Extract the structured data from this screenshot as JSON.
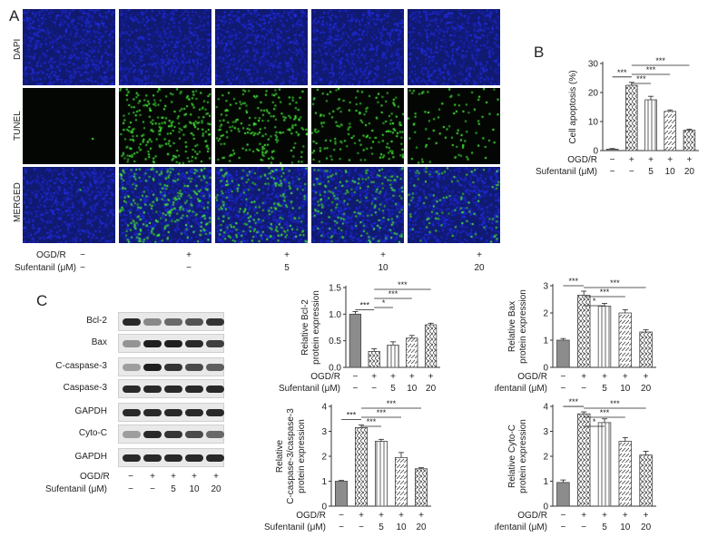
{
  "panelA": {
    "letter": "A",
    "rows": [
      "DAPI",
      "TUNEL",
      "MERGED"
    ],
    "conditions": {
      "ogd_label": "OGD/R",
      "suf_label": "Sufentanil (μM)",
      "ogd": [
        "−",
        "+",
        "+",
        "+",
        "+"
      ],
      "suf": [
        "−",
        "−",
        "5",
        "10",
        "20"
      ]
    }
  },
  "panelB": {
    "letter": "B"
  },
  "panelC": {
    "letter": "C",
    "blots": [
      "Bcl-2",
      "Bax",
      "C-caspase-3",
      "Caspase-3",
      "GAPDH",
      "Cyto-C",
      "GAPDH"
    ],
    "ogd_label": "OGD/R",
    "suf_label": "Sufentanil (μM)",
    "ogd": [
      "−",
      "+",
      "+",
      "+",
      "+"
    ],
    "suf": [
      "−",
      "−",
      "5",
      "10",
      "20"
    ]
  },
  "colors": {
    "dapi": "#1a2a9e",
    "tunel": "#3fd13a",
    "bar_solid": "#8c8c8c"
  },
  "chart_data": [
    {
      "id": "apoptosis",
      "type": "bar",
      "ylabel": "Cell apoptosis (%)",
      "ylim": [
        0,
        30
      ],
      "yticks": [
        0,
        10,
        20,
        30
      ],
      "categories": [
        "1",
        "2",
        "3",
        "4",
        "5"
      ],
      "values": [
        0.5,
        22.5,
        17.5,
        13.5,
        7.0
      ],
      "errors": [
        0.2,
        1.0,
        1.2,
        0.5,
        0.4
      ],
      "ogd_label": "OGD/R",
      "suf_label": "Sufentanil (μM)",
      "ogd": [
        "−",
        "+",
        "+",
        "+",
        "+"
      ],
      "suf": [
        "−",
        "−",
        "5",
        "10",
        "20"
      ],
      "significance": [
        {
          "from": 0,
          "to": 1,
          "label": "***"
        },
        {
          "from": 1,
          "to": 2,
          "label": "***"
        },
        {
          "from": 1,
          "to": 3,
          "label": "***"
        },
        {
          "from": 1,
          "to": 4,
          "label": "***"
        }
      ]
    },
    {
      "id": "bcl2",
      "type": "bar",
      "ylabel": [
        "Relative Bcl-2",
        "protein expression"
      ],
      "ylim": [
        0,
        1.5
      ],
      "yticks": [
        0.0,
        0.5,
        1.0,
        1.5
      ],
      "categories": [
        "1",
        "2",
        "3",
        "4",
        "5"
      ],
      "values": [
        1.0,
        0.3,
        0.42,
        0.55,
        0.8
      ],
      "errors": [
        0.05,
        0.05,
        0.06,
        0.05,
        0.03
      ],
      "ogd_label": "OGD/R",
      "suf_label": "Sufentanil (μM)",
      "ogd": [
        "−",
        "+",
        "+",
        "+",
        "+"
      ],
      "suf": [
        "−",
        "−",
        "5",
        "10",
        "20"
      ],
      "significance": [
        {
          "from": 0,
          "to": 1,
          "label": "***"
        },
        {
          "from": 1,
          "to": 2,
          "label": "*"
        },
        {
          "from": 1,
          "to": 3,
          "label": "***"
        },
        {
          "from": 1,
          "to": 4,
          "label": "***"
        }
      ]
    },
    {
      "id": "bax",
      "type": "bar",
      "ylabel": [
        "Relative Bax",
        "protein expression"
      ],
      "ylim": [
        0,
        3
      ],
      "yticks": [
        0,
        1,
        2,
        3
      ],
      "categories": [
        "1",
        "2",
        "3",
        "4",
        "5"
      ],
      "values": [
        1.0,
        2.65,
        2.25,
        2.0,
        1.3
      ],
      "errors": [
        0.06,
        0.15,
        0.1,
        0.12,
        0.08
      ],
      "ogd_label": "OGD/R",
      "suf_label": "Sufentanil (μM)",
      "ogd": [
        "−",
        "+",
        "+",
        "+",
        "+"
      ],
      "suf": [
        "−",
        "−",
        "5",
        "10",
        "20"
      ],
      "significance": [
        {
          "from": 0,
          "to": 1,
          "label": "***"
        },
        {
          "from": 1,
          "to": 2,
          "label": "*"
        },
        {
          "from": 1,
          "to": 3,
          "label": "***"
        },
        {
          "from": 1,
          "to": 4,
          "label": "***"
        }
      ]
    },
    {
      "id": "ccasp",
      "type": "bar",
      "ylabel": [
        "Relative",
        "C-caspase-3/caspase-3",
        "protein expression"
      ],
      "ylim": [
        0,
        4
      ],
      "yticks": [
        0,
        1,
        2,
        3,
        4
      ],
      "categories": [
        "1",
        "2",
        "3",
        "4",
        "5"
      ],
      "values": [
        1.0,
        3.15,
        2.6,
        1.95,
        1.5
      ],
      "errors": [
        0.03,
        0.1,
        0.08,
        0.2,
        0.04
      ],
      "ogd_label": "OGD/R",
      "suf_label": "Sufentanil (μM)",
      "ogd": [
        "−",
        "+",
        "+",
        "+",
        "+"
      ],
      "suf": [
        "−",
        "−",
        "5",
        "10",
        "20"
      ],
      "significance": [
        {
          "from": 0,
          "to": 1,
          "label": "***"
        },
        {
          "from": 1,
          "to": 2,
          "label": "***"
        },
        {
          "from": 1,
          "to": 3,
          "label": "***"
        },
        {
          "from": 1,
          "to": 4,
          "label": "***"
        }
      ]
    },
    {
      "id": "cytoc",
      "type": "bar",
      "ylabel": [
        "Relative Cyto-C",
        "protein expression"
      ],
      "ylim": [
        0,
        4
      ],
      "yticks": [
        0,
        1,
        2,
        3,
        4
      ],
      "categories": [
        "1",
        "2",
        "3",
        "4",
        "5"
      ],
      "values": [
        0.95,
        3.7,
        3.35,
        2.6,
        2.05
      ],
      "errors": [
        0.1,
        0.08,
        0.15,
        0.15,
        0.15
      ],
      "ogd_label": "OGD/R",
      "suf_label": "Sufentanil (μM)",
      "ogd": [
        "−",
        "+",
        "+",
        "+",
        "+"
      ],
      "suf": [
        "−",
        "−",
        "5",
        "10",
        "20"
      ],
      "significance": [
        {
          "from": 0,
          "to": 1,
          "label": "***"
        },
        {
          "from": 1,
          "to": 2,
          "label": "*"
        },
        {
          "from": 1,
          "to": 3,
          "label": "***"
        },
        {
          "from": 1,
          "to": 4,
          "label": "***"
        }
      ]
    }
  ]
}
